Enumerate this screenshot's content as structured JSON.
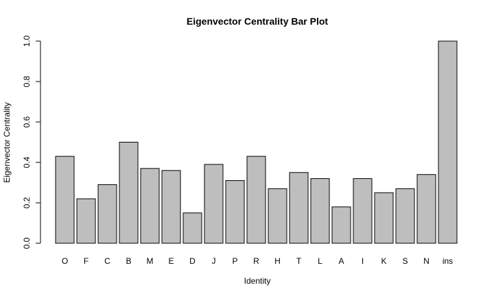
{
  "chart_data": {
    "type": "bar",
    "title": "Eigenvector Centrality Bar Plot",
    "xlabel": "Identity",
    "ylabel": "Eigenvector Centrality",
    "ylim": [
      0,
      1.0
    ],
    "yticks": [
      "0.0",
      "0.2",
      "0.4",
      "0.6",
      "0.8",
      "1.0"
    ],
    "categories": [
      "O",
      "F",
      "C",
      "B",
      "M",
      "E",
      "D",
      "J",
      "P",
      "R",
      "H",
      "T",
      "L",
      "A",
      "I",
      "K",
      "S",
      "N",
      "ins"
    ],
    "values": [
      0.43,
      0.22,
      0.29,
      0.5,
      0.37,
      0.36,
      0.15,
      0.39,
      0.31,
      0.43,
      0.27,
      0.35,
      0.32,
      0.18,
      0.32,
      0.25,
      0.27,
      0.34,
      1.0
    ],
    "colors": {
      "bar": "#bebebe",
      "stroke": "#000000"
    },
    "grid": false
  }
}
